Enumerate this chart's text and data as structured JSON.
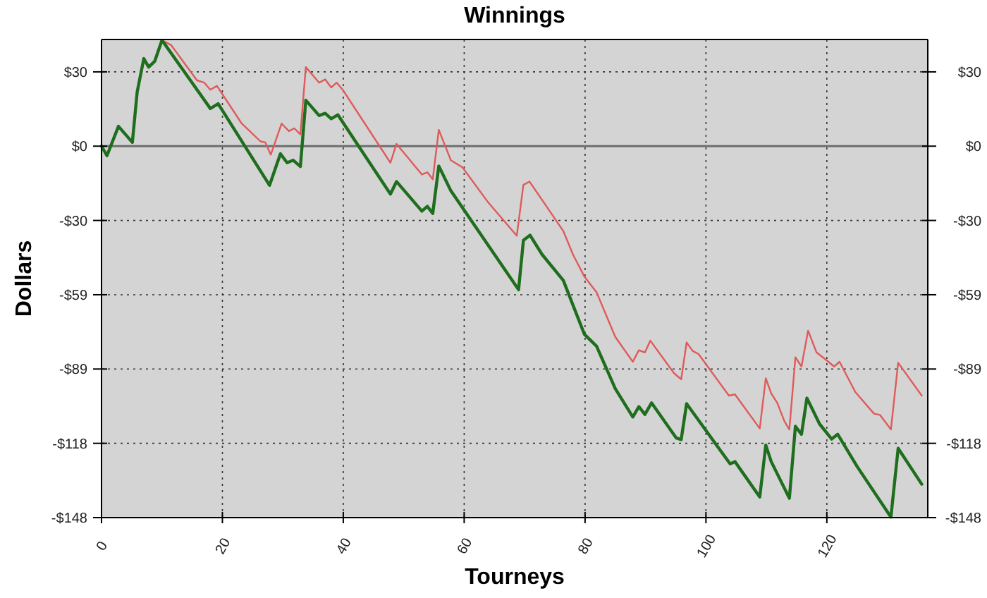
{
  "chart_data": {
    "type": "line",
    "title": "Winnings",
    "xlabel": "Tourneys",
    "ylabel": "Dollars",
    "xlim": [
      0,
      136.7
    ],
    "xticks": [
      0,
      20,
      40,
      60,
      80,
      100,
      120
    ],
    "ylim": [
      -148,
      42.5
    ],
    "yticks": [
      {
        "value": 29.6,
        "label": "$30"
      },
      {
        "value": 0,
        "label": "$0"
      },
      {
        "value": -29.6,
        "label": "-$30"
      },
      {
        "value": -59.2,
        "label": "-$59"
      },
      {
        "value": -88.8,
        "label": "-$89"
      },
      {
        "value": -118.4,
        "label": "-$118"
      },
      {
        "value": -148,
        "label": "-$148"
      }
    ],
    "y2lim": [
      -148,
      42.5
    ],
    "y2ticks": [
      {
        "value": 29.6,
        "label": "$30"
      },
      {
        "value": 0,
        "label": "$0"
      },
      {
        "value": -29.6,
        "label": "-$30"
      },
      {
        "value": -59.2,
        "label": "-$59"
      },
      {
        "value": -88.8,
        "label": "-$89"
      },
      {
        "value": -118.4,
        "label": "-$118"
      },
      {
        "value": -148,
        "label": "-$148"
      }
    ],
    "grid": true,
    "line_style": "solid",
    "ref_lines": [
      {
        "axis": "y",
        "value": 0,
        "color": "#6e6e6e"
      }
    ],
    "series": [
      {
        "color": "#e05a5a",
        "x": [
          10,
          11.5,
          15.8,
          17,
          18,
          19.1,
          23.2,
          26.3,
          27.1,
          28,
          29.8,
          31,
          31.9,
          32.9,
          33.8,
          36,
          37,
          38,
          38.9,
          39.9,
          47.8,
          48.8,
          53,
          53.9,
          54.8,
          55.8,
          57.8,
          59.7,
          64,
          68.7,
          69.8,
          70.8,
          76.4,
          78,
          79.9,
          81.9,
          85,
          87.9,
          88.9,
          89.9,
          90.8,
          94.7,
          95.9,
          96.8,
          97.8,
          98.8,
          103.8,
          104.8,
          108.9,
          109.9,
          110.8,
          111.8,
          113,
          113.8,
          114.8,
          115.8,
          116.9,
          118.3,
          120,
          121.2,
          122.1,
          124.7,
          127.8,
          128.8,
          130.6,
          131.8,
          135.7
        ],
        "values": [
          42.2,
          40.3,
          26.2,
          25.3,
          22.5,
          24,
          9,
          1.9,
          1.5,
          -3.4,
          9,
          6,
          7.1,
          4.7,
          31.5,
          25.3,
          26.6,
          23.4,
          25.3,
          22.5,
          -6.6,
          0.9,
          -11.3,
          -10.4,
          -13.2,
          6.5,
          -5.6,
          -8.4,
          -22.5,
          -35.7,
          -15.4,
          -14.1,
          -33.8,
          -43.2,
          -52,
          -58.2,
          -76,
          -85.9,
          -81.3,
          -82.2,
          -77.5,
          -90.4,
          -92.9,
          -78.2,
          -81.6,
          -82.9,
          -99.4,
          -98.9,
          -112.5,
          -92.5,
          -98.5,
          -102.3,
          -109.7,
          -112.9,
          -84.1,
          -87.8,
          -73.5,
          -82.2,
          -85.4,
          -87.8,
          -85.9,
          -97.9,
          -106.6,
          -107.1,
          -112.9,
          -86.3,
          -99.4
        ]
      },
      {
        "color": "#1e6e1e",
        "x": [
          0,
          0.9,
          2.8,
          5.1,
          5.9,
          7,
          7.8,
          8.8,
          10,
          18,
          19.3,
          27.8,
          29.6,
          30.7,
          31.7,
          32.9,
          33.8,
          36,
          37,
          38,
          39.1,
          47.8,
          48.8,
          53,
          53.9,
          54.8,
          55.8,
          57.8,
          69,
          69.8,
          70.9,
          72.9,
          76.4,
          79.9,
          81.9,
          85,
          87.9,
          88.9,
          89.9,
          91,
          95.1,
          95.9,
          96.8,
          104,
          104.8,
          108.9,
          109.9,
          110.8,
          113.8,
          114.8,
          115.8,
          116.7,
          118.8,
          120.8,
          121.8,
          125,
          130.6,
          131.8,
          135.7
        ],
        "values": [
          0,
          -3.8,
          7.9,
          1.5,
          21.6,
          34.9,
          31.5,
          33.8,
          42.2,
          15,
          16.9,
          -15.6,
          -3,
          -6.6,
          -5.6,
          -8.1,
          18.3,
          12.2,
          13.1,
          10.9,
          12.5,
          -19.1,
          -14.1,
          -25.9,
          -24,
          -26.8,
          -7.9,
          -17.8,
          -57.2,
          -37.5,
          -35.5,
          -43.2,
          -53.5,
          -75,
          -79.7,
          -96.6,
          -107.9,
          -103.8,
          -106.9,
          -102.3,
          -116.3,
          -116.9,
          -102.6,
          -126.6,
          -125.7,
          -139.8,
          -119.1,
          -125.7,
          -140.3,
          -111.6,
          -114.8,
          -100.4,
          -110.7,
          -116.7,
          -114.8,
          -127.6,
          -147.8,
          -120.4,
          -134.7
        ]
      }
    ]
  }
}
